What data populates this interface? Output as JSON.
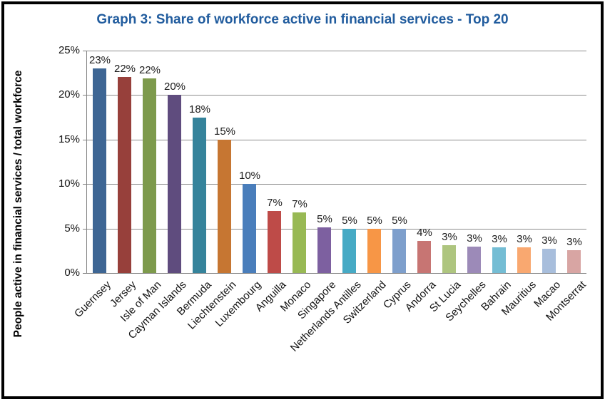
{
  "colors": {
    "title": "#215C9E",
    "grid": "#8C8C8C",
    "axis": "#808080",
    "label_text": "#1A1A1A",
    "frame_border": "#000000",
    "background": "#FFFFFF"
  },
  "chart_data": {
    "type": "bar",
    "title": "Graph 3: Share of workforce active in financial services - Top 20",
    "ylabel": "People active in financial services / total workforce",
    "xlabel": "",
    "ylim": [
      0,
      25
    ],
    "ytick_values": [
      0,
      5,
      10,
      15,
      20,
      25
    ],
    "ytick_labels": [
      "0%",
      "5%",
      "10%",
      "15%",
      "20%",
      "25%"
    ],
    "grid": true,
    "legend": "none",
    "categories": [
      "Guernsey",
      "Jersey",
      "Isle of Man",
      "Cayman Islands",
      "Bermuda",
      "Liechtenstein",
      "Luxembourg",
      "Anguilla",
      "Monaco",
      "Singapore",
      "Netherlands Antilles",
      "Switzerland",
      "Cyprus",
      "Andorra",
      "St Lucia",
      "Seychelles",
      "Bahrain",
      "Mauritius",
      "Macao",
      "Montserrat"
    ],
    "values": [
      23,
      22,
      21.9,
      20,
      17.5,
      15,
      10,
      7,
      6.8,
      5.1,
      5,
      5,
      5,
      3.6,
      3.1,
      3.0,
      2.9,
      2.85,
      2.7,
      2.55
    ],
    "data_labels": [
      "23%",
      "22%",
      "22%",
      "20%",
      "18%",
      "15%",
      "10%",
      "7%",
      "7%",
      "5%",
      "5%",
      "5%",
      "5%",
      "4%",
      "3%",
      "3%",
      "3%",
      "3%",
      "3%",
      "3%"
    ],
    "bar_colors": [
      "#3E6694",
      "#97403B",
      "#7D9A4C",
      "#5F4C7E",
      "#35839B",
      "#C67632",
      "#4A7EBB",
      "#BE4B48",
      "#98B954",
      "#7D60A0",
      "#46AAC5",
      "#F79646",
      "#7E9FCC",
      "#C77573",
      "#AEC57F",
      "#9C8AB8",
      "#74BDD4",
      "#F9A870",
      "#A8BEDC",
      "#D8A5A3"
    ]
  }
}
